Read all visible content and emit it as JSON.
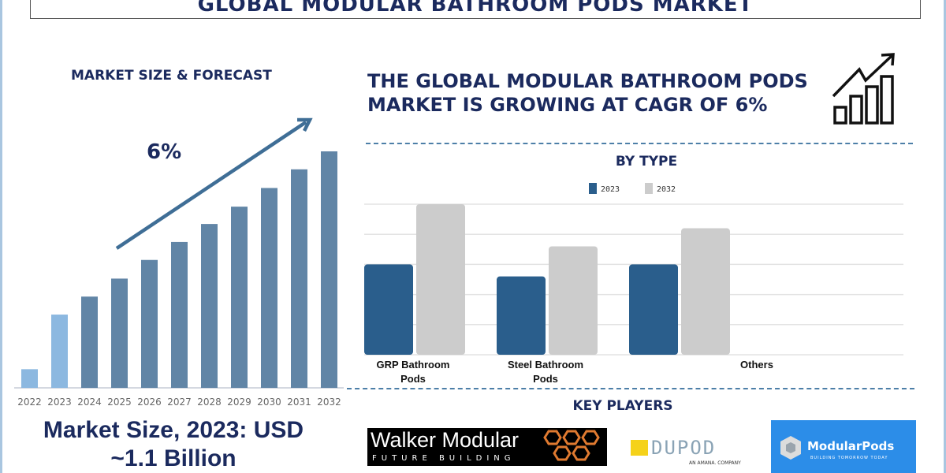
{
  "title": "GLOBAL MODULAR BATHROOM PODS MARKET",
  "left": {
    "heading": "MARKET SIZE & FORECAST",
    "cagr_label": "6%",
    "footer_line1": "Market Size, 2023: USD",
    "footer_line2": "~1.1 Billion"
  },
  "headline": {
    "line1": "THE GLOBAL MODULAR BATHROOM PODS",
    "line2": "MARKET IS GROWING AT CAGR OF 6%",
    "icon": "growth-bar-chart-arrow-icon"
  },
  "by_type": {
    "heading": "BY TYPE"
  },
  "key_players": {
    "heading": "KEY PLAYERS",
    "logos": [
      {
        "name": "Walker Modular",
        "tagline": "FUTURE BUILDING"
      },
      {
        "name": "DUPOD",
        "tagline": "AN AMANA. COMPANY"
      },
      {
        "name": "ModularPods",
        "tagline": "BUILDING TOMORROW TODAY"
      }
    ]
  },
  "chart_data": [
    {
      "type": "bar",
      "title": "MARKET SIZE & FORECAST",
      "categories": [
        "2022",
        "2023",
        "2024",
        "2025",
        "2026",
        "2027",
        "2028",
        "2029",
        "2030",
        "2031",
        "2032"
      ],
      "values": [
        0.28,
        1.1,
        1.37,
        1.64,
        1.92,
        2.19,
        2.46,
        2.72,
        3.0,
        3.28,
        3.55
      ],
      "colors": [
        "#8cb8e0",
        "#8cb8e0",
        "#6185a6",
        "#6185a6",
        "#6185a6",
        "#6185a6",
        "#6185a6",
        "#6185a6",
        "#6185a6",
        "#6185a6",
        "#6185a6"
      ],
      "annotation": "6%",
      "ylim": [
        0,
        3.8
      ],
      "grid": false
    },
    {
      "type": "bar",
      "title": "BY TYPE",
      "categories": [
        "GRP Bathroom Pods",
        "Steel Bathroom Pods",
        "Others"
      ],
      "series": [
        {
          "name": "2023",
          "values": [
            3.0,
            2.6,
            3.0
          ],
          "color": "#2a5e8c"
        },
        {
          "name": "2032",
          "values": [
            5.0,
            3.6,
            4.2
          ],
          "color": "#cccccc"
        }
      ],
      "ylim": [
        0,
        5
      ],
      "grid": true,
      "legend": "top"
    }
  ]
}
